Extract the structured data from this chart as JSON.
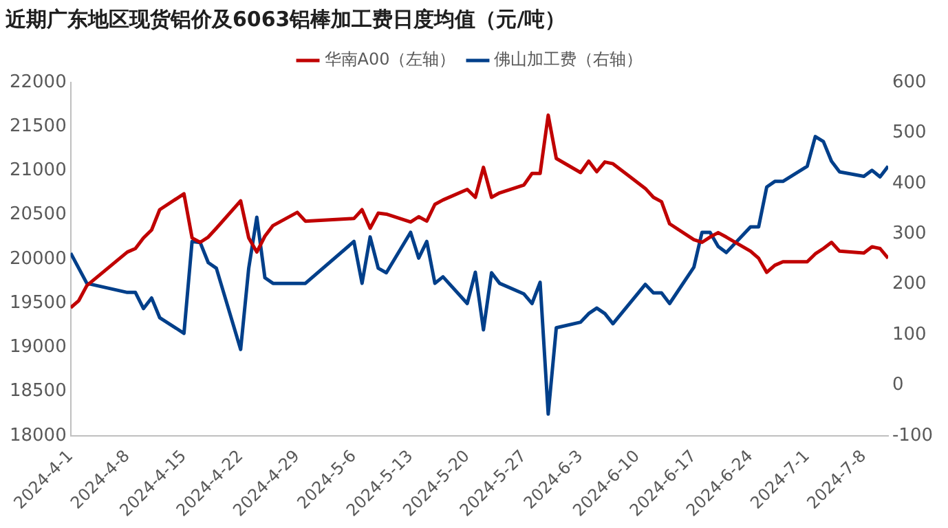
{
  "chart_data": {
    "type": "line",
    "title": "近期广东地区现货铝价及6063铝棒加工费日度均值（元/吨）",
    "legend": "top",
    "grid": false,
    "marker": "none",
    "line_style": "solid",
    "x": [
      "2024-04-01",
      "2024-04-02",
      "2024-04-03",
      "2024-04-08",
      "2024-04-09",
      "2024-04-10",
      "2024-04-11",
      "2024-04-12",
      "2024-04-15",
      "2024-04-16",
      "2024-04-17",
      "2024-04-18",
      "2024-04-19",
      "2024-04-22",
      "2024-04-23",
      "2024-04-24",
      "2024-04-25",
      "2024-04-26",
      "2024-04-29",
      "2024-04-30",
      "2024-05-06",
      "2024-05-07",
      "2024-05-08",
      "2024-05-09",
      "2024-05-10",
      "2024-05-13",
      "2024-05-14",
      "2024-05-15",
      "2024-05-16",
      "2024-05-17",
      "2024-05-20",
      "2024-05-21",
      "2024-05-22",
      "2024-05-23",
      "2024-05-24",
      "2024-05-27",
      "2024-05-28",
      "2024-05-29",
      "2024-05-30",
      "2024-05-31",
      "2024-06-03",
      "2024-06-04",
      "2024-06-05",
      "2024-06-06",
      "2024-06-07",
      "2024-06-11",
      "2024-06-12",
      "2024-06-13",
      "2024-06-14",
      "2024-06-17",
      "2024-06-18",
      "2024-06-19",
      "2024-06-20",
      "2024-06-21",
      "2024-06-24",
      "2024-06-25",
      "2024-06-26",
      "2024-06-27",
      "2024-06-28",
      "2024-07-01",
      "2024-07-02",
      "2024-07-03",
      "2024-07-04",
      "2024-07-05",
      "2024-07-08",
      "2024-07-09",
      "2024-07-10",
      "2024-07-11"
    ],
    "series": [
      {
        "name": "华南A00（左轴）",
        "color": "#c00000",
        "axis": "y",
        "values": [
          19450,
          19530,
          19700,
          20080,
          20120,
          20240,
          20330,
          20560,
          20740,
          20240,
          20190,
          20250,
          20350,
          20660,
          20240,
          20080,
          20260,
          20380,
          20530,
          20430,
          20460,
          20560,
          20350,
          20520,
          20510,
          20420,
          20480,
          20430,
          20620,
          20670,
          20790,
          20700,
          21040,
          20700,
          20750,
          20840,
          20970,
          20970,
          21630,
          21140,
          20980,
          21110,
          20990,
          21100,
          21080,
          20800,
          20700,
          20650,
          20400,
          20220,
          20190,
          20250,
          20300,
          20250,
          20090,
          20010,
          19850,
          19930,
          19970,
          19970,
          20060,
          20120,
          20190,
          20090,
          20070,
          20140,
          20120,
          20010
        ]
      },
      {
        "name": "佛山加工费（右轴）",
        "color": "#003f8a",
        "axis": "y2",
        "values": [
          262,
          232,
          202,
          184,
          184,
          152,
          173,
          134,
          103,
          285,
          283,
          243,
          232,
          71,
          232,
          333,
          213,
          202,
          202,
          202,
          285,
          202,
          294,
          232,
          223,
          303,
          252,
          285,
          202,
          215,
          162,
          224,
          110,
          223,
          202,
          181,
          162,
          204,
          -57,
          114,
          125,
          142,
          153,
          142,
          122,
          200,
          183,
          183,
          162,
          234,
          303,
          303,
          275,
          263,
          314,
          314,
          393,
          404,
          404,
          434,
          493,
          483,
          444,
          423,
          414,
          426,
          413,
          434
        ]
      }
    ],
    "xlim": [
      "2024-04-01",
      "2024-07-11"
    ],
    "xticks": [
      {
        "value": "2024-04-01",
        "label": "2024-4-1"
      },
      {
        "value": "2024-04-08",
        "label": "2024-4-8"
      },
      {
        "value": "2024-04-15",
        "label": "2024-4-15"
      },
      {
        "value": "2024-04-22",
        "label": "2024-4-22"
      },
      {
        "value": "2024-04-29",
        "label": "2024-4-29"
      },
      {
        "value": "2024-05-06",
        "label": "2024-5-6"
      },
      {
        "value": "2024-05-13",
        "label": "2024-5-13"
      },
      {
        "value": "2024-05-20",
        "label": "2024-5-20"
      },
      {
        "value": "2024-05-27",
        "label": "2024-5-27"
      },
      {
        "value": "2024-06-03",
        "label": "2024-6-3"
      },
      {
        "value": "2024-06-10",
        "label": "2024-6-10"
      },
      {
        "value": "2024-06-17",
        "label": "2024-6-17"
      },
      {
        "value": "2024-06-24",
        "label": "2024-6-24"
      },
      {
        "value": "2024-07-01",
        "label": "2024-7-1"
      },
      {
        "value": "2024-07-08",
        "label": "2024-7-8"
      }
    ],
    "ylim": [
      18000,
      22000
    ],
    "yticks": [
      18000,
      18500,
      19000,
      19500,
      20000,
      20500,
      21000,
      21500,
      22000
    ],
    "y2lim": [
      -100,
      600
    ],
    "y2ticks": [
      -100,
      0,
      100,
      200,
      300,
      400,
      500,
      600
    ]
  }
}
